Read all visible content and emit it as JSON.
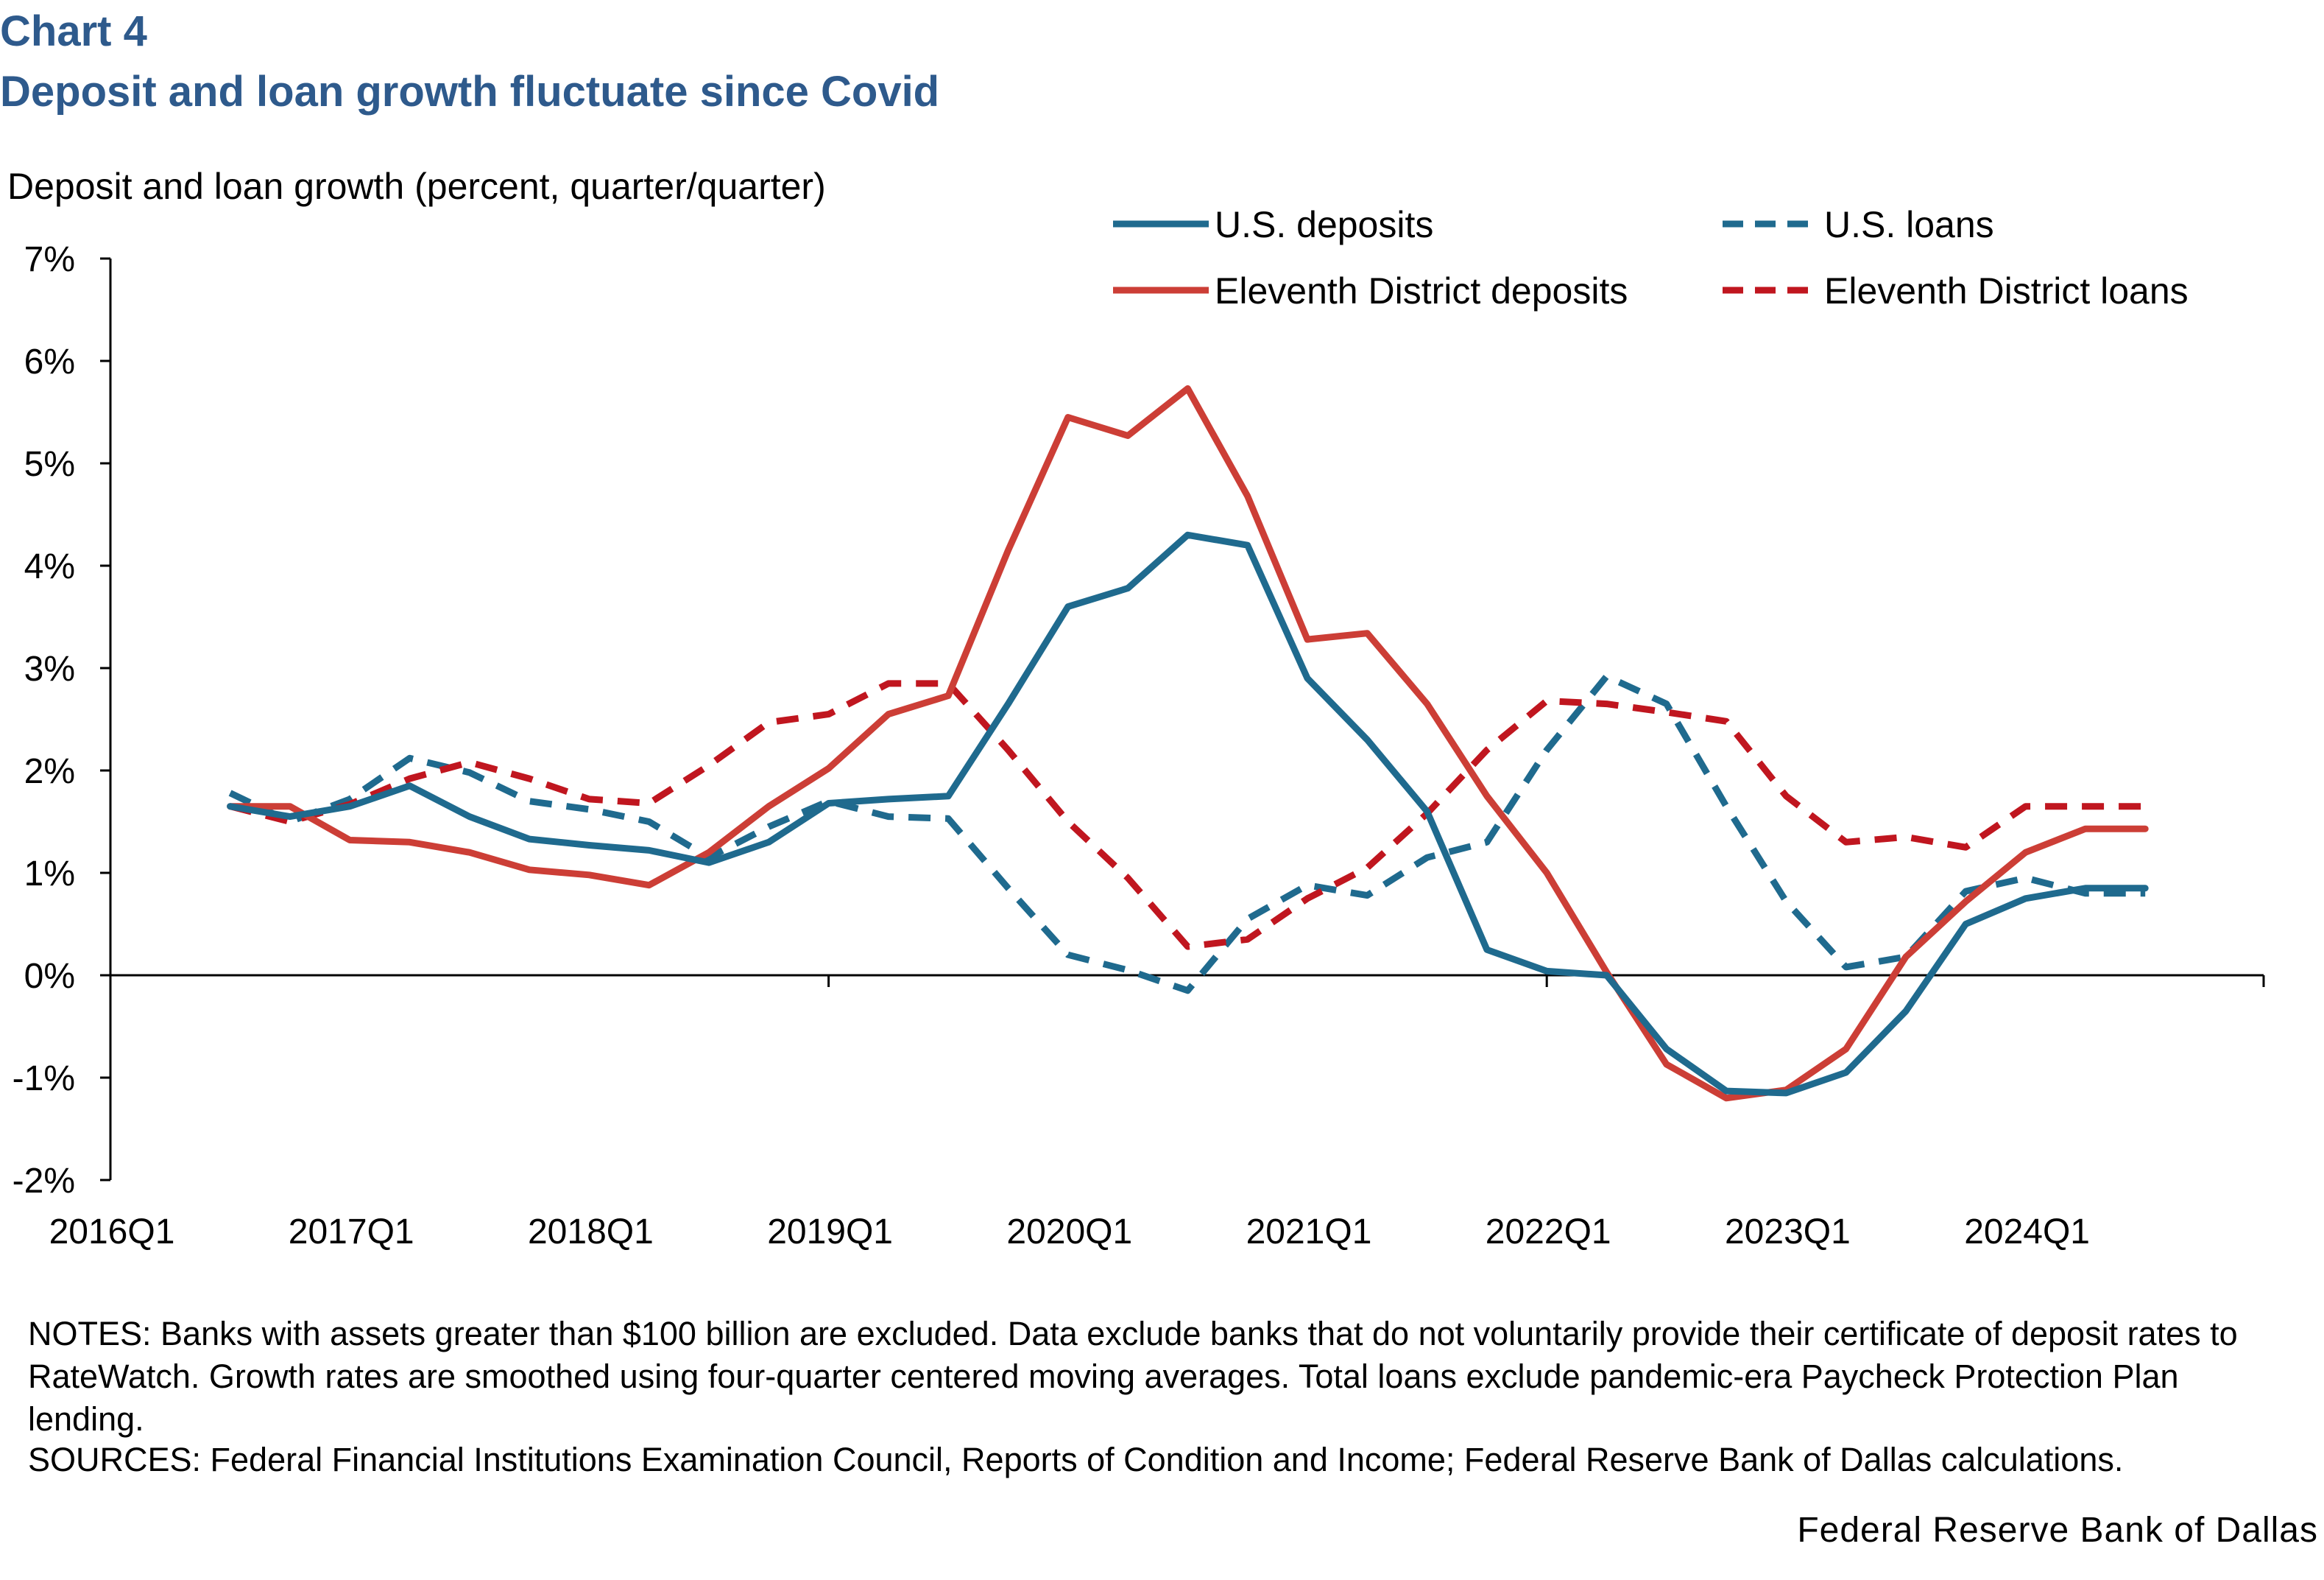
{
  "chart_num": "Chart 4",
  "title": "Deposit and loan growth fluctuate since Covid",
  "notes": "NOTES: Banks with assets greater than $100 billion are excluded. Data exclude banks that do not voluntarily provide their certificate of deposit rates to RateWatch. Growth rates are smoothed using four-quarter centered moving averages. Total loans exclude pandemic-era Paycheck Protection Plan lending.",
  "sources": "SOURCES: Federal Financial Institutions Examination Council, Reports of Condition and Income; Federal Reserve Bank of Dallas calculations.",
  "credit": "Federal Reserve Bank of Dallas",
  "chart_data": {
    "type": "line",
    "ylabel": "Deposit and loan growth (percent, quarter/quarter)",
    "ylim": [
      -2,
      7
    ],
    "yticks": [
      "-2%",
      "-1%",
      "0%",
      "1%",
      "2%",
      "3%",
      "4%",
      "5%",
      "6%",
      "7%"
    ],
    "xticks": [
      "2016Q1",
      "2017Q1",
      "2018Q1",
      "2019Q1",
      "2020Q1",
      "2021Q1",
      "2022Q1",
      "2023Q1",
      "2024Q1"
    ],
    "x": [
      "2016Q3",
      "2016Q4",
      "2017Q1",
      "2017Q2",
      "2017Q3",
      "2017Q4",
      "2018Q1",
      "2018Q2",
      "2018Q3",
      "2018Q4",
      "2019Q1",
      "2019Q2",
      "2019Q3",
      "2019Q4",
      "2020Q1",
      "2020Q2",
      "2020Q3",
      "2020Q4",
      "2021Q1",
      "2021Q2",
      "2021Q3",
      "2021Q4",
      "2022Q1",
      "2022Q2",
      "2022Q3",
      "2022Q4",
      "2023Q1",
      "2023Q2",
      "2023Q3",
      "2023Q4",
      "2024Q1",
      "2024Q2",
      "2024Q3"
    ],
    "legend_position": "top-right",
    "series": [
      {
        "name": "U.S. deposits",
        "color": "#1f6a8e",
        "dash": false,
        "values": [
          1.65,
          1.55,
          1.65,
          1.85,
          1.55,
          1.33,
          1.27,
          1.22,
          1.1,
          1.3,
          1.68,
          1.72,
          1.75,
          2.65,
          3.6,
          3.78,
          4.3,
          4.2,
          2.9,
          2.3,
          1.6,
          0.25,
          0.04,
          0.0,
          -0.72,
          -1.13,
          -1.15,
          -0.95,
          -0.35,
          0.5,
          0.75,
          0.85,
          0.85
        ]
      },
      {
        "name": "U.S. loans",
        "color": "#1f6a8e",
        "dash": true,
        "values": [
          1.78,
          1.5,
          1.72,
          2.12,
          1.98,
          1.7,
          1.62,
          1.5,
          1.15,
          1.45,
          1.7,
          1.55,
          1.53,
          0.85,
          0.2,
          0.05,
          -0.15,
          0.55,
          0.88,
          0.78,
          1.15,
          1.3,
          2.2,
          2.92,
          2.65,
          1.65,
          0.72,
          0.08,
          0.18,
          0.82,
          0.95,
          0.8,
          0.8
        ]
      },
      {
        "name": "Eleventh District deposits",
        "color": "#cc3e36",
        "dash": false,
        "values": [
          1.65,
          1.65,
          1.32,
          1.3,
          1.2,
          1.03,
          0.98,
          0.88,
          1.2,
          1.65,
          2.02,
          2.55,
          2.73,
          4.15,
          5.45,
          5.27,
          5.73,
          4.68,
          3.28,
          3.34,
          2.65,
          1.75,
          1.0,
          0.03,
          -0.87,
          -1.2,
          -1.12,
          -0.72,
          0.18,
          0.72,
          1.2,
          1.43,
          1.43
        ]
      },
      {
        "name": "Eleventh District loans",
        "color": "#c0161f",
        "dash": true,
        "values": [
          1.65,
          1.5,
          1.67,
          1.92,
          2.08,
          1.92,
          1.72,
          1.68,
          2.05,
          2.47,
          2.55,
          2.85,
          2.85,
          2.2,
          1.5,
          0.95,
          0.28,
          0.35,
          0.75,
          1.05,
          1.58,
          2.2,
          2.68,
          2.65,
          2.57,
          2.48,
          1.75,
          1.3,
          1.35,
          1.25,
          1.65,
          1.65,
          1.65
        ]
      }
    ]
  }
}
